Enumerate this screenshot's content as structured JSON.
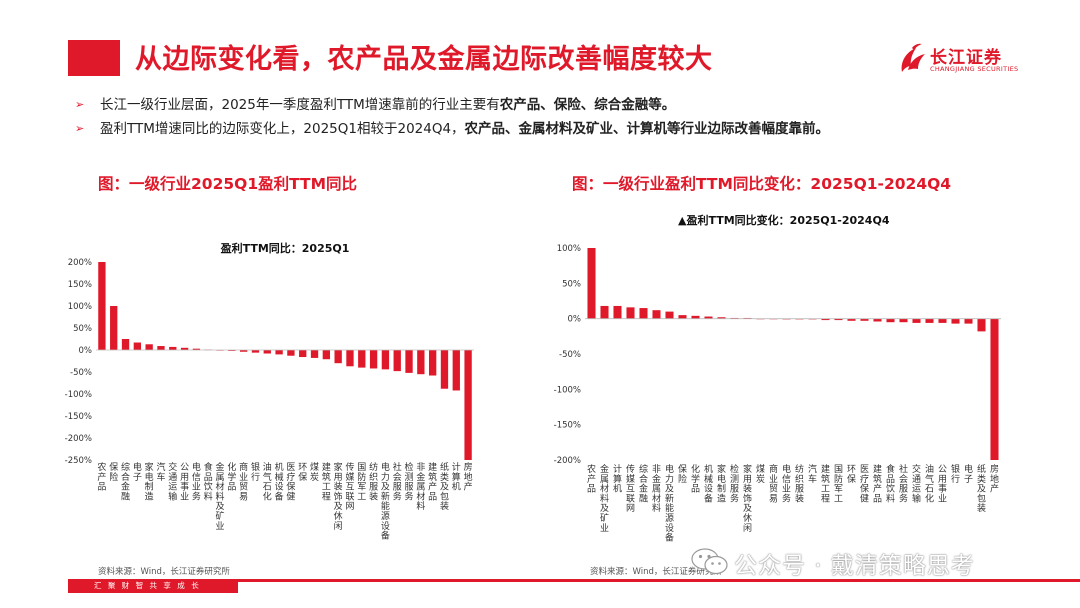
{
  "slide_title": "从边际变化看，农产品及金属边际改善幅度较大",
  "brand": {
    "logo_cn": "长江证券",
    "logo_en": "CHANGJIANG SECURITIES",
    "color": "#e0192a"
  },
  "bullets": [
    {
      "text": "长江一级行业层面，2025年一季度盈利TTM增速靠前的行业主要有",
      "strong": "农产品、保险、综合金融等。",
      "tail": ""
    },
    {
      "text": "盈利TTM增速同比的边际变化上，2025Q1相较于2024Q4，",
      "strong": "农产品、金属材料及矿业、计算机等行业边际改善幅度靠前。",
      "tail": ""
    }
  ],
  "figures": {
    "left_caption": "图：一级行业2025Q1盈利TTM同比",
    "right_caption": "图：一级行业盈利TTM同比变化：2025Q1-2024Q4"
  },
  "chart_data": [
    {
      "type": "bar",
      "title": "盈利TTM同比：2025Q1",
      "xlabel": "",
      "ylabel": "",
      "ylim": [
        -250,
        200
      ],
      "yticks": [
        200,
        150,
        100,
        50,
        0,
        -50,
        -100,
        -150,
        -200,
        -250
      ],
      "ytick_labels": [
        "200%",
        "150%",
        "100%",
        "50%",
        "0%",
        "-50%",
        "-100%",
        "-150%",
        "-200%",
        "-250%"
      ],
      "bar_color": "#e0192a",
      "categories": [
        "农产品",
        "保险",
        "综合金融",
        "电子",
        "家电制造",
        "汽车",
        "交通运输",
        "公用事业",
        "电信业务",
        "食品饮料",
        "金属材料及矿业",
        "化学品",
        "商业贸易",
        "银行",
        "油气石化",
        "机械设备",
        "医疗保健",
        "环保",
        "煤炭",
        "建筑工程",
        "家用装饰及休闲",
        "传媒互联网",
        "国防军工",
        "纺织服装",
        "电力及新能源设备",
        "社会服务",
        "检测服务",
        "非金属材料",
        "建筑产品",
        "纸类及包装",
        "计算机",
        "房地产"
      ],
      "values": [
        200,
        100,
        25,
        17,
        13,
        9,
        7,
        5,
        3,
        1,
        -1,
        -2,
        -4,
        -6,
        -8,
        -10,
        -13,
        -16,
        -18,
        -21,
        -30,
        -37,
        -40,
        -42,
        -44,
        -48,
        -52,
        -55,
        -58,
        -88,
        -92,
        -250
      ]
    },
    {
      "type": "bar",
      "title": "盈利TTM同比变化：2025Q1-2024Q4",
      "xlabel": "",
      "ylabel": "",
      "ylim": [
        -200,
        100
      ],
      "yticks": [
        100,
        50,
        0,
        -50,
        -100,
        -150,
        -200
      ],
      "ytick_labels": [
        "100%",
        "50%",
        "0%",
        "-50%",
        "-100%",
        "-150%",
        "-200%"
      ],
      "bar_color": "#e0192a",
      "categories": [
        "农产品",
        "金属材料及矿业",
        "计算机",
        "传媒互联网",
        "综合金融",
        "非金属材料",
        "电力及新能源设备",
        "保险",
        "化学品",
        "机械设备",
        "家电制造",
        "检测服务",
        "家用装饰及休闲",
        "煤炭",
        "商业贸易",
        "电信业务",
        "纺织服装",
        "汽车",
        "建筑工程",
        "国防军工",
        "环保",
        "医疗保健",
        "建筑产品",
        "食品饮料",
        "社会服务",
        "交通运输",
        "油气石化",
        "公用事业",
        "银行",
        "电子",
        "纸类及包装",
        "房地产"
      ],
      "values": [
        100,
        18,
        18,
        16,
        15,
        12,
        10,
        5,
        4,
        3,
        2,
        1,
        1,
        0,
        0,
        -1,
        -1,
        -1,
        -2,
        -2,
        -3,
        -3,
        -4,
        -5,
        -5,
        -6,
        -6,
        -6,
        -7,
        -7,
        -18,
        -200
      ]
    }
  ],
  "sources": {
    "left": "资料来源：Wind，长江证券研究所",
    "right": "资料来源：Wind，长江证券研究所"
  },
  "footer": {
    "motto": "汇 聚 财 智    共 享 成 长"
  },
  "watermark": {
    "text": "公众号 · 戴清策略思考"
  }
}
